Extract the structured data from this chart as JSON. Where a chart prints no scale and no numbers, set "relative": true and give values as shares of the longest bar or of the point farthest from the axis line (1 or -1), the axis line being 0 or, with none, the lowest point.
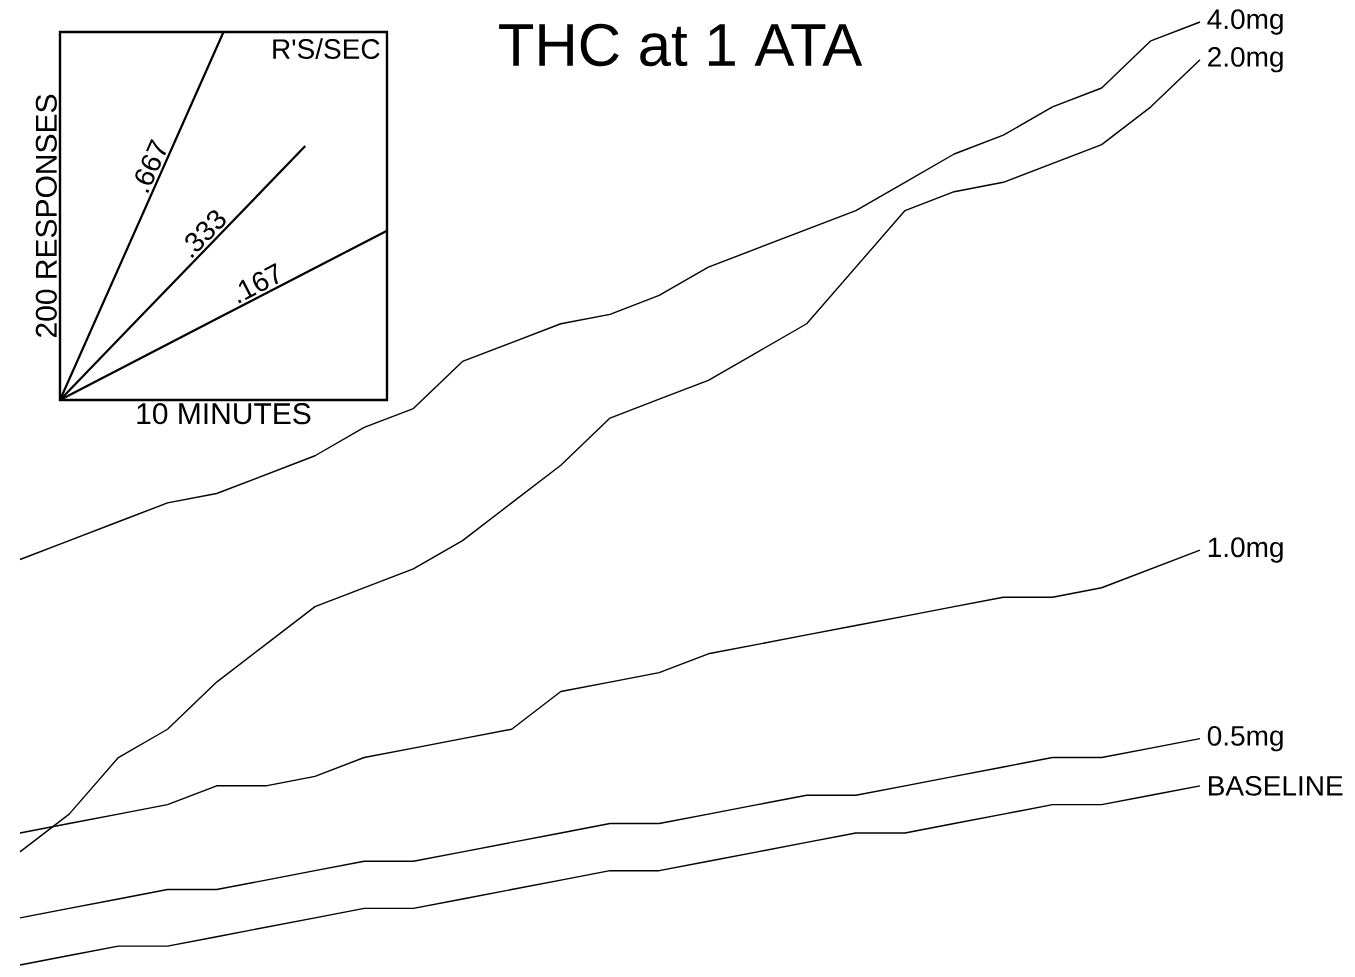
{
  "chart_data": [
    {
      "type": "line",
      "title": "THC at 1 ATA",
      "relative": true,
      "categories": [
        null,
        null,
        null,
        null,
        null,
        null,
        null,
        null,
        null,
        null,
        null,
        null,
        null,
        null,
        null,
        null,
        null,
        null,
        null,
        null,
        null,
        null,
        null,
        null,
        null
      ],
      "series": [
        {
          "name": "4.0mg",
          "color": "#000000",
          "values": [
            0.43,
            0.45,
            0.47,
            0.49,
            0.5,
            0.52,
            0.54,
            0.57,
            0.59,
            0.64,
            0.66,
            0.68,
            0.69,
            0.71,
            0.74,
            0.76,
            0.78,
            0.8,
            0.83,
            0.86,
            0.88,
            0.91,
            0.93,
            0.98,
            1
          ]
        },
        {
          "name": "2.0mg",
          "color": "#000000",
          "values": [
            0.12,
            0.16,
            0.22,
            0.25,
            0.3,
            0.34,
            0.38,
            0.4,
            0.42,
            0.45,
            0.49,
            0.53,
            0.58,
            0.6,
            0.62,
            0.65,
            0.68,
            0.74,
            0.8,
            0.82,
            0.83,
            0.85,
            0.87,
            0.91,
            0.96
          ]
        },
        {
          "name": "1.0mg",
          "color": "#000000",
          "values": [
            0.14,
            0.15,
            0.16,
            0.17,
            0.19,
            0.19,
            0.2,
            0.22,
            0.23,
            0.24,
            0.25,
            0.29,
            0.3,
            0.31,
            0.33,
            0.34,
            0.35,
            0.36,
            0.37,
            0.38,
            0.39,
            0.39,
            0.4,
            0.42,
            0.44
          ]
        },
        {
          "name": "0.5mg",
          "color": "#000000",
          "values": [
            0.05,
            0.06,
            0.07,
            0.08,
            0.08,
            0.09,
            0.1,
            0.11,
            0.11,
            0.12,
            0.13,
            0.14,
            0.15,
            0.15,
            0.16,
            0.17,
            0.18,
            0.18,
            0.19,
            0.2,
            0.21,
            0.22,
            0.22,
            0.23,
            0.24
          ]
        },
        {
          "name": "BASELINE",
          "color": "#000000",
          "values": [
            0,
            0.01,
            0.02,
            0.02,
            0.03,
            0.04,
            0.05,
            0.06,
            0.06,
            0.07,
            0.08,
            0.09,
            0.1,
            0.1,
            0.11,
            0.12,
            0.13,
            0.14,
            0.14,
            0.15,
            0.16,
            0.17,
            0.17,
            0.18,
            0.19
          ]
        }
      ]
    },
    {
      "type": "line",
      "title": "R'S/SEC",
      "xlabel": "10 MINUTES",
      "ylabel": "200 RESPONSES",
      "relative": true,
      "categories": [
        null,
        null,
        null,
        null,
        null
      ],
      "series": [
        {
          "name": ".667",
          "color": "#000000",
          "values": [
            0,
            0.5,
            1,
            null,
            null
          ]
        },
        {
          "name": ".333",
          "color": "#000000",
          "values": [
            0,
            0.23,
            0.46,
            0.69,
            null
          ]
        },
        {
          "name": ".167",
          "color": "#000000",
          "values": [
            0,
            0.115,
            0.23,
            0.345,
            0.46
          ]
        }
      ]
    }
  ]
}
